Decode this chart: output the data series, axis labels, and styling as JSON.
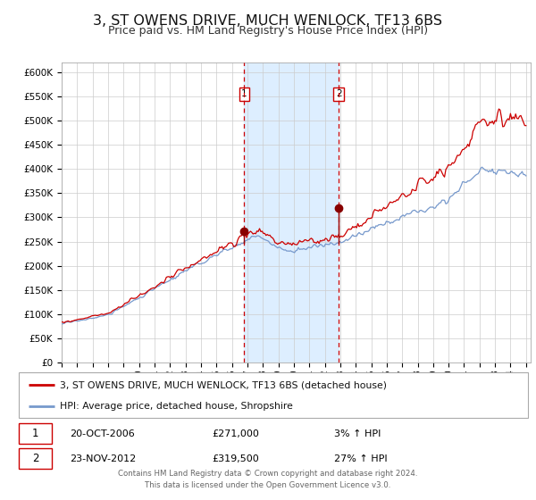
{
  "title": "3, ST OWENS DRIVE, MUCH WENLOCK, TF13 6BS",
  "subtitle": "Price paid vs. HM Land Registry's House Price Index (HPI)",
  "title_fontsize": 11.5,
  "subtitle_fontsize": 9,
  "ylim": [
    0,
    620000
  ],
  "ytick_values": [
    0,
    50000,
    100000,
    150000,
    200000,
    250000,
    300000,
    350000,
    400000,
    450000,
    500000,
    550000,
    600000
  ],
  "x_start_year": 1995,
  "x_end_year": 2025,
  "legend_entries": [
    "3, ST OWENS DRIVE, MUCH WENLOCK, TF13 6BS (detached house)",
    "HPI: Average price, detached house, Shropshire"
  ],
  "red_line_color": "#cc0000",
  "blue_line_color": "#7799cc",
  "plot_bg_color": "#ffffff",
  "grid_color": "#cccccc",
  "shade_color": "#ddeeff",
  "transaction1_year": 2006.8,
  "transaction1_price": 271000,
  "transaction2_year": 2012.9,
  "transaction2_price": 319500,
  "ann1_date": "20-OCT-2006",
  "ann1_price": "£271,000",
  "ann1_hpi": "3% ↑ HPI",
  "ann2_date": "23-NOV-2012",
  "ann2_price": "£319,500",
  "ann2_hpi": "27% ↑ HPI",
  "footer_text": "Contains HM Land Registry data © Crown copyright and database right 2024.\nThis data is licensed under the Open Government Licence v3.0."
}
